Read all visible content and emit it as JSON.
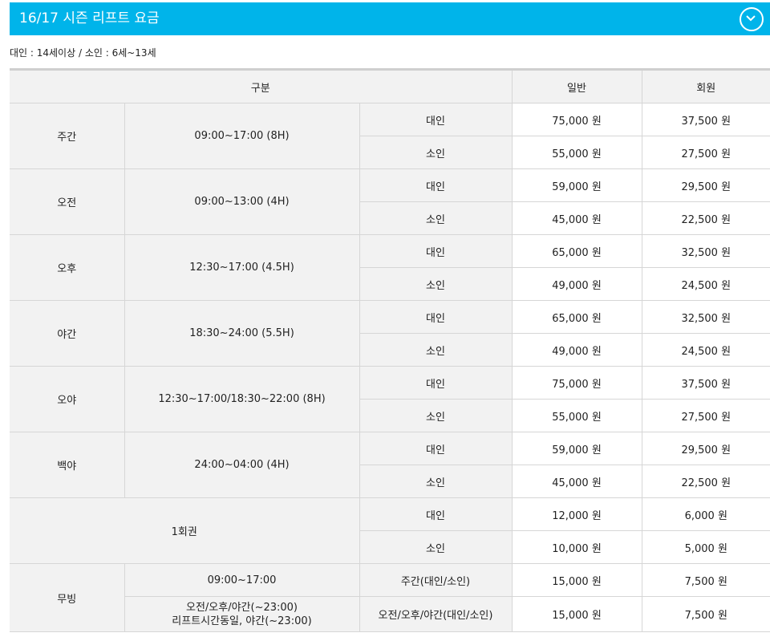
{
  "header": {
    "title": "16/17 시즌 리프트 요금",
    "toggle_icon": "chevron-down-circle-icon",
    "bg_color": "#00b4ea"
  },
  "age_note": "대인 : 14세이상 / 소인 : 6세~13세",
  "table": {
    "headers": {
      "category": "구분",
      "general": "일반",
      "member": "회원"
    },
    "rows": [
      {
        "name": "주간",
        "time": "09:00~17:00 (8H)",
        "items": [
          {
            "type": "대인",
            "general": "75,000 원",
            "member": "37,500 원"
          },
          {
            "type": "소인",
            "general": "55,000 원",
            "member": "27,500 원"
          }
        ]
      },
      {
        "name": "오전",
        "time": "09:00~13:00 (4H)",
        "items": [
          {
            "type": "대인",
            "general": "59,000 원",
            "member": "29,500 원"
          },
          {
            "type": "소인",
            "general": "45,000 원",
            "member": "22,500 원"
          }
        ]
      },
      {
        "name": "오후",
        "time": "12:30~17:00 (4.5H)",
        "items": [
          {
            "type": "대인",
            "general": "65,000 원",
            "member": "32,500 원"
          },
          {
            "type": "소인",
            "general": "49,000 원",
            "member": "24,500 원"
          }
        ]
      },
      {
        "name": "야간",
        "time": "18:30~24:00 (5.5H)",
        "items": [
          {
            "type": "대인",
            "general": "65,000 원",
            "member": "32,500 원"
          },
          {
            "type": "소인",
            "general": "49,000 원",
            "member": "24,500 원"
          }
        ]
      },
      {
        "name": "오야",
        "time": "12:30~17:00/18:30~22:00 (8H)",
        "items": [
          {
            "type": "대인",
            "general": "75,000 원",
            "member": "37,500 원"
          },
          {
            "type": "소인",
            "general": "55,000 원",
            "member": "27,500 원"
          }
        ]
      },
      {
        "name": "백야",
        "time": "24:00~04:00 (4H)",
        "items": [
          {
            "type": "대인",
            "general": "59,000 원",
            "member": "29,500 원"
          },
          {
            "type": "소인",
            "general": "45,000 원",
            "member": "22,500 원"
          }
        ]
      },
      {
        "name": "1회권",
        "items": [
          {
            "type": "대인",
            "general": "12,000 원",
            "member": "6,000 원"
          },
          {
            "type": "소인",
            "general": "10,000 원",
            "member": "5,000 원"
          }
        ]
      },
      {
        "name": "무빙",
        "items": [
          {
            "time": "09:00~17:00",
            "type": "주간(대인/소인)",
            "general": "15,000 원",
            "member": "7,500 원"
          },
          {
            "time_line1": "오전/오후/야간(~23:00)",
            "time_line2": "리프트시간동일, 야간(~23:00)",
            "type": "오전/오후/야간(대인/소인)",
            "general": "15,000 원",
            "member": "7,500 원"
          }
        ]
      }
    ]
  }
}
